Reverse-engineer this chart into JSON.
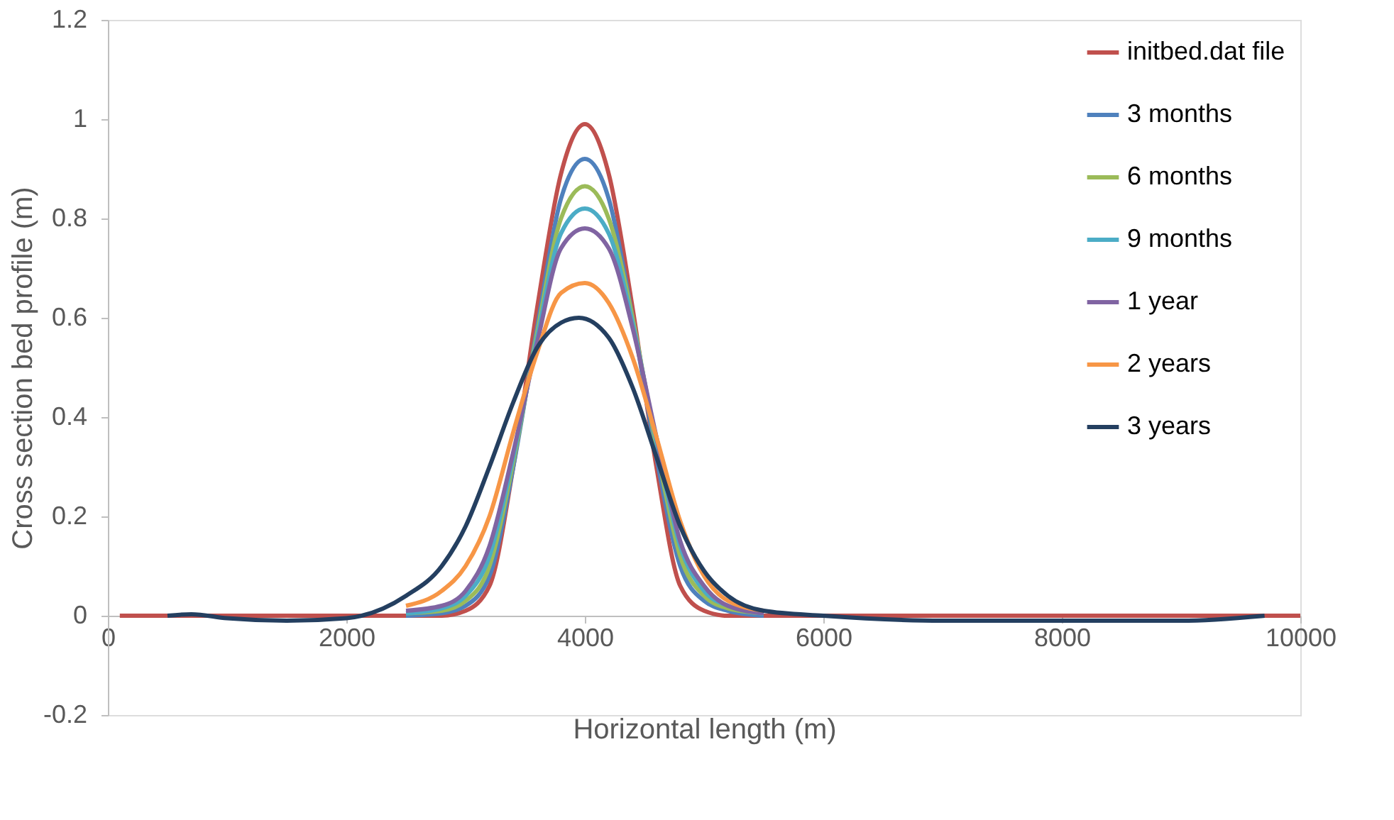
{
  "chart_data": {
    "type": "line",
    "xlabel": "Horizontal length (m)",
    "ylabel": "Cross section bed profile (m)",
    "xlim": [
      0,
      10000
    ],
    "xticks": [
      0,
      2000,
      4000,
      6000,
      8000,
      10000
    ],
    "ylim": [
      -0.2,
      1.2
    ],
    "yticks": [
      -0.2,
      0,
      0.2,
      0.4,
      0.6,
      0.8,
      1,
      1.2
    ],
    "grid": false,
    "legend": "top right",
    "marker": "none",
    "line_style": "solid",
    "series": [
      {
        "name": "initbed.dat file",
        "color": "#c0504d",
        "x": [
          100,
          1000,
          2000,
          2800,
          3000,
          3200,
          3400,
          3600,
          3800,
          4000,
          4200,
          4400,
          4600,
          4800,
          5000,
          5200,
          6000,
          8000,
          10000
        ],
        "values": [
          0,
          0,
          0,
          0,
          0.01,
          0.06,
          0.3,
          0.62,
          0.89,
          0.99,
          0.89,
          0.62,
          0.3,
          0.06,
          0.01,
          0,
          0,
          0,
          0
        ]
      },
      {
        "name": "3 months",
        "color": "#4f81bd",
        "x": [
          2500,
          2800,
          3000,
          3200,
          3400,
          3600,
          3800,
          4000,
          4200,
          4400,
          4600,
          4800,
          5000,
          5200,
          5500
        ],
        "values": [
          0,
          0.005,
          0.02,
          0.08,
          0.3,
          0.58,
          0.84,
          0.92,
          0.84,
          0.6,
          0.32,
          0.1,
          0.03,
          0.01,
          0
        ]
      },
      {
        "name": "6 months",
        "color": "#9bbb59",
        "x": [
          2500,
          2800,
          3000,
          3200,
          3400,
          3600,
          3800,
          4000,
          4200,
          4400,
          4600,
          4800,
          5000,
          5200,
          5500
        ],
        "values": [
          0.005,
          0.01,
          0.03,
          0.1,
          0.31,
          0.57,
          0.8,
          0.865,
          0.8,
          0.6,
          0.34,
          0.12,
          0.04,
          0.015,
          0.005
        ]
      },
      {
        "name": "9 months",
        "color": "#4bacc6",
        "x": [
          2500,
          2800,
          3000,
          3200,
          3400,
          3600,
          3800,
          4000,
          4200,
          4400,
          4600,
          4800,
          5000,
          5200,
          5500
        ],
        "values": [
          0.005,
          0.015,
          0.04,
          0.12,
          0.32,
          0.56,
          0.77,
          0.82,
          0.77,
          0.59,
          0.35,
          0.14,
          0.05,
          0.02,
          0.005
        ]
      },
      {
        "name": "1 year",
        "color": "#8064a2",
        "x": [
          2500,
          2800,
          3000,
          3200,
          3400,
          3600,
          3800,
          4000,
          4200,
          4400,
          4600,
          4800,
          5000,
          5200,
          5500
        ],
        "values": [
          0.01,
          0.02,
          0.05,
          0.14,
          0.33,
          0.55,
          0.74,
          0.78,
          0.74,
          0.58,
          0.36,
          0.15,
          0.06,
          0.02,
          0.005
        ]
      },
      {
        "name": "2 years",
        "color": "#f79646",
        "x": [
          2500,
          2800,
          3000,
          3200,
          3400,
          3600,
          3800,
          4000,
          4200,
          4400,
          4600,
          4800,
          5000,
          5200,
          5500
        ],
        "values": [
          0.02,
          0.05,
          0.1,
          0.2,
          0.37,
          0.53,
          0.65,
          0.67,
          0.63,
          0.52,
          0.36,
          0.19,
          0.08,
          0.03,
          0.01
        ]
      },
      {
        "name": "3 years",
        "color": "#243f60",
        "x": [
          500,
          700,
          1000,
          1500,
          2000,
          2500,
          2800,
          3000,
          3200,
          3400,
          3600,
          3800,
          3950,
          4200,
          4400,
          4600,
          4800,
          5000,
          5200,
          5500,
          6000,
          7000,
          8000,
          9000,
          9700
        ],
        "values": [
          0,
          0.003,
          -0.005,
          -0.01,
          -0.005,
          0.04,
          0.1,
          0.18,
          0.3,
          0.43,
          0.54,
          0.59,
          0.6,
          0.56,
          0.46,
          0.32,
          0.18,
          0.09,
          0.04,
          0.01,
          0,
          -0.01,
          -0.01,
          -0.01,
          0
        ]
      }
    ]
  }
}
